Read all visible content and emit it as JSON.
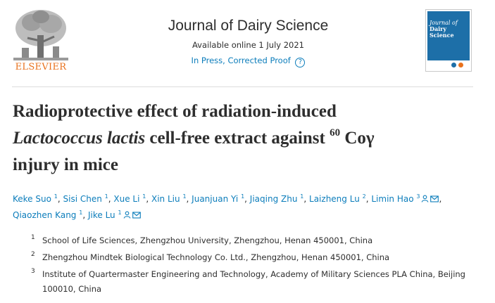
{
  "publisher": {
    "name": "ELSEVIER"
  },
  "journal": {
    "title": "Journal of Dairy Science",
    "available": "Available online 1 July 2021",
    "status": "In Press, Corrected Proof",
    "help_glyph": "?",
    "cover": {
      "line1": "Journal of",
      "line2": "Dairy Science"
    }
  },
  "article": {
    "title_line1": "Radioprotective effect of radiation-induced",
    "title_line2_italic": "Lactococcus lactis",
    "title_line2_rest": " cell-free extract against ",
    "isotope_sup": "60",
    "isotope_rest": " Coγ",
    "title_line3": "injury in mice"
  },
  "authors": [
    {
      "name": "Keke Suo",
      "aff": "1",
      "sep": ", "
    },
    {
      "name": "Sisi Chen",
      "aff": "1",
      "sep": ", "
    },
    {
      "name": "Xue Li",
      "aff": "1",
      "sep": ", "
    },
    {
      "name": "Xin Liu",
      "aff": "1",
      "sep": ", "
    },
    {
      "name": "Juanjuan Yi",
      "aff": "1",
      "sep": ", "
    },
    {
      "name": "Jiaqing Zhu",
      "aff": "1",
      "sep": ", "
    },
    {
      "name": "Laizheng Lu",
      "aff": "2",
      "sep": ", "
    },
    {
      "name": "Limin Hao",
      "aff": "3",
      "sep": ", ",
      "icons": [
        "person-icon",
        "envelope-icon"
      ]
    },
    {
      "name": "Qiaozhen Kang",
      "aff": "1",
      "sep": ", "
    },
    {
      "name": "Jike Lu",
      "aff": "1",
      "sep": "",
      "icons": [
        "person-icon",
        "envelope-icon"
      ]
    }
  ],
  "affiliations": [
    {
      "num": "1",
      "text": "School of Life Sciences, Zhengzhou University, Zhengzhou, Henan 450001, China"
    },
    {
      "num": "2",
      "text": "Zhengzhou Mindtek Biological Technology Co. Ltd., Zhengzhou, Henan 450001, China"
    },
    {
      "num": "3",
      "text": "Institute of Quartermaster Engineering and Technology, Academy of Military Sciences PLA China, Beijing 100010, China"
    }
  ],
  "colors": {
    "link": "#0c7dbb",
    "publisher_orange": "#e9711c",
    "cover_blue": "#1d6fa8",
    "text": "#2e2e2e"
  }
}
